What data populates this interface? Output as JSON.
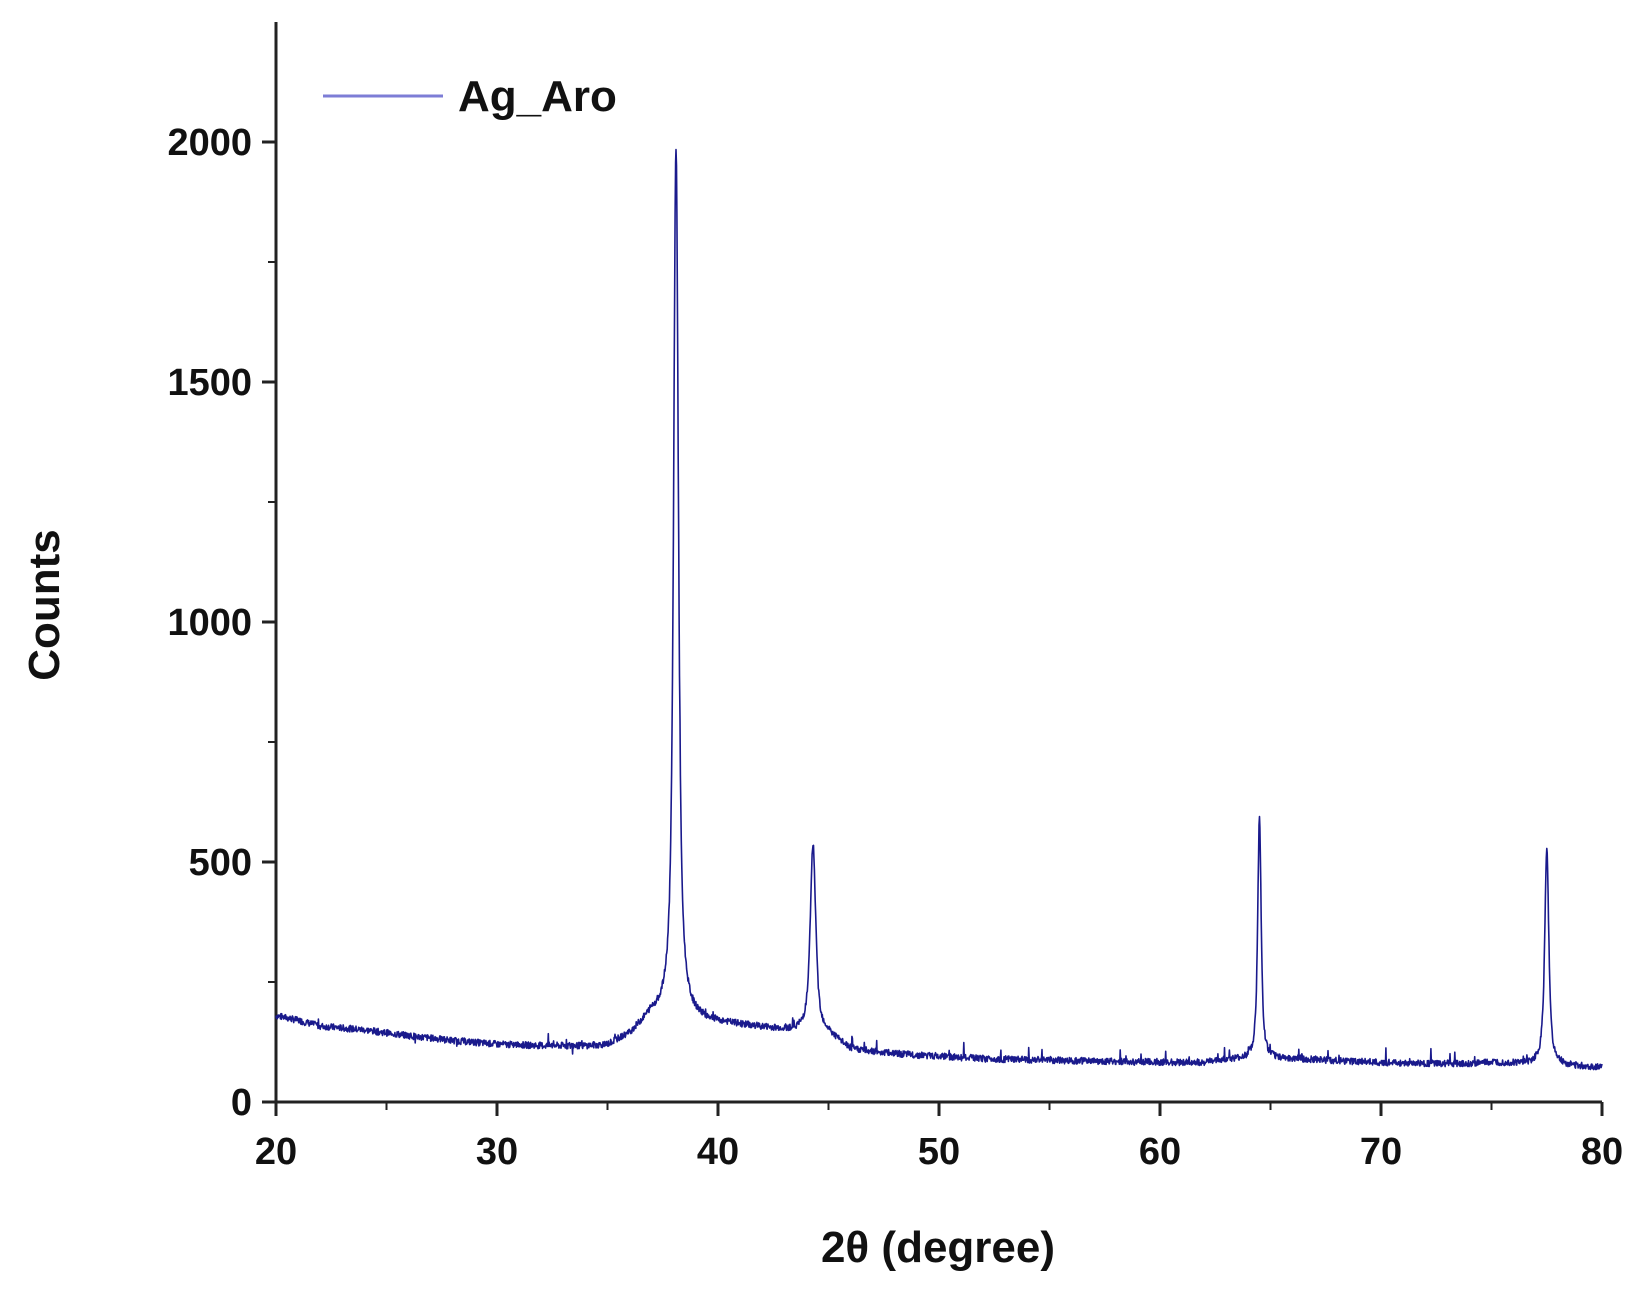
{
  "chart_data": {
    "type": "line",
    "title": "",
    "xlabel": "2θ (degree)",
    "ylabel": "Counts",
    "xlim": [
      20,
      80
    ],
    "ylim": [
      0,
      2250
    ],
    "xticks": [
      20,
      30,
      40,
      50,
      60,
      70,
      80
    ],
    "xtick_labels": [
      "20",
      "30",
      "40",
      "50",
      "60",
      "70",
      "80"
    ],
    "yticks": [
      0,
      500,
      1000,
      1500,
      2000
    ],
    "ytick_labels": [
      "0",
      "500",
      "1000",
      "1500",
      "2000"
    ],
    "grid": false,
    "legend": {
      "position": "top-left",
      "entries": [
        "Ag_Aro"
      ]
    },
    "colors": {
      "line": "#1a1a8c",
      "legend_line": "#7d7dd6",
      "axes": "#222222"
    },
    "series": [
      {
        "name": "Ag_Aro",
        "baseline": [
          [
            20,
            180
          ],
          [
            21,
            170
          ],
          [
            22,
            158
          ],
          [
            24,
            150
          ],
          [
            26,
            138
          ],
          [
            28,
            128
          ],
          [
            30,
            120
          ],
          [
            32,
            117
          ],
          [
            34,
            116
          ],
          [
            35,
            118
          ],
          [
            36,
            140
          ],
          [
            37,
            180
          ],
          [
            45,
            140
          ],
          [
            46,
            110
          ],
          [
            48,
            100
          ],
          [
            50,
            95
          ],
          [
            52,
            90
          ],
          [
            54,
            88
          ],
          [
            56,
            86
          ],
          [
            58,
            84
          ],
          [
            60,
            83
          ],
          [
            62,
            82
          ],
          [
            63,
            88
          ],
          [
            66,
            90
          ],
          [
            68,
            86
          ],
          [
            70,
            82
          ],
          [
            72,
            80
          ],
          [
            74,
            80
          ],
          [
            75,
            82
          ],
          [
            80,
            72
          ]
        ],
        "peaks": [
          {
            "position": 38.1,
            "height": 1990
          },
          {
            "position": 44.3,
            "height": 535
          },
          {
            "position": 64.5,
            "height": 595
          },
          {
            "position": 77.5,
            "height": 525
          }
        ],
        "noise_amplitude": 7
      }
    ]
  }
}
